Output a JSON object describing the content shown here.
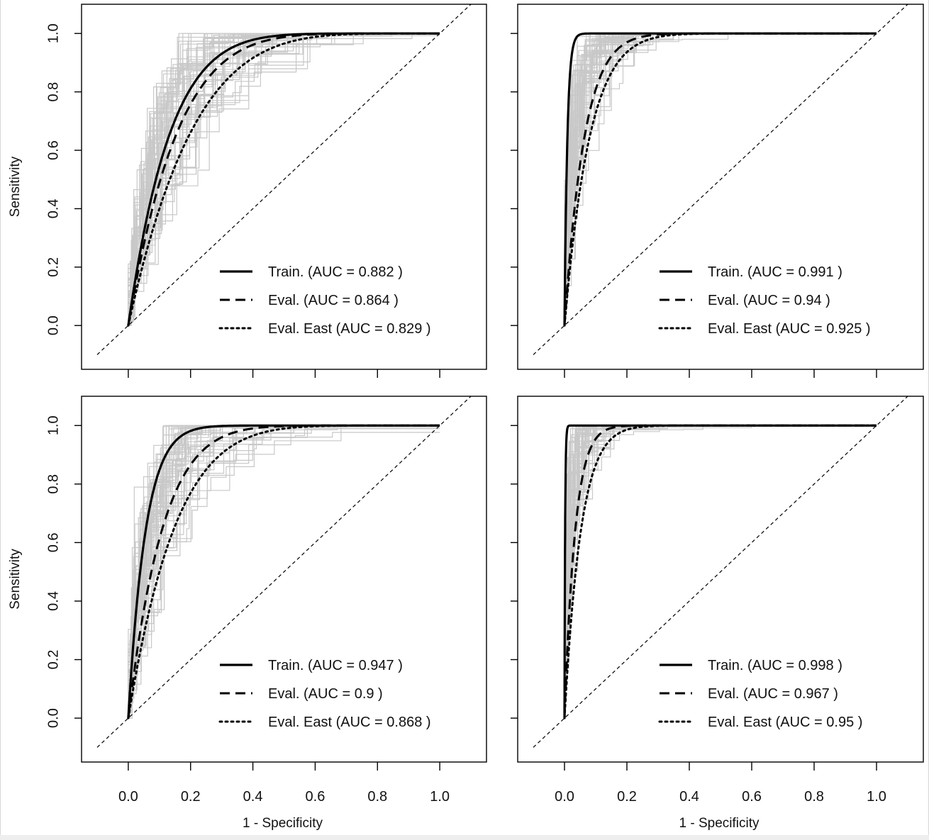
{
  "chart_data": [
    {
      "type": "line",
      "panel": "top-left",
      "xlabel": "",
      "ylabel": "Sensitivity",
      "xlim": [
        -0.15,
        1.15
      ],
      "ylim": [
        -0.15,
        1.1
      ],
      "x_ticks": [
        0.0,
        0.2,
        0.4,
        0.6,
        0.8,
        1.0
      ],
      "y_ticks": [
        0.0,
        0.2,
        0.4,
        0.6,
        0.8,
        1.0
      ],
      "show_x_tick_labels": false,
      "show_y_tick_labels": true,
      "legend_position": "bottom-right",
      "series": [
        {
          "name": "Train. (AUC = 0.882 )",
          "style": "solid",
          "auc": 0.882
        },
        {
          "name": "Eval. (AUC = 0.864 )",
          "style": "dashed",
          "auc": 0.864
        },
        {
          "name": "Eval. East (AUC = 0.829 )",
          "style": "dotted",
          "auc": 0.829
        }
      ],
      "reference_line": "diagonal"
    },
    {
      "type": "line",
      "panel": "top-right",
      "xlabel": "",
      "ylabel": "",
      "xlim": [
        -0.15,
        1.15
      ],
      "ylim": [
        -0.15,
        1.1
      ],
      "x_ticks": [
        0.0,
        0.2,
        0.4,
        0.6,
        0.8,
        1.0
      ],
      "y_ticks": [
        0.0,
        0.2,
        0.4,
        0.6,
        0.8,
        1.0
      ],
      "show_x_tick_labels": false,
      "show_y_tick_labels": false,
      "legend_position": "bottom-right",
      "series": [
        {
          "name": "Train. (AUC = 0.991 )",
          "style": "solid",
          "auc": 0.991
        },
        {
          "name": "Eval. (AUC = 0.94 )",
          "style": "dashed",
          "auc": 0.94
        },
        {
          "name": "Eval. East (AUC = 0.925 )",
          "style": "dotted",
          "auc": 0.925
        }
      ],
      "reference_line": "diagonal"
    },
    {
      "type": "line",
      "panel": "bottom-left",
      "xlabel": "1 - Specificity",
      "ylabel": "Sensitivity",
      "xlim": [
        -0.15,
        1.15
      ],
      "ylim": [
        -0.15,
        1.1
      ],
      "x_ticks": [
        0.0,
        0.2,
        0.4,
        0.6,
        0.8,
        1.0
      ],
      "y_ticks": [
        0.0,
        0.2,
        0.4,
        0.6,
        0.8,
        1.0
      ],
      "show_x_tick_labels": true,
      "show_y_tick_labels": true,
      "legend_position": "bottom-right",
      "series": [
        {
          "name": "Train. (AUC = 0.947 )",
          "style": "solid",
          "auc": 0.947
        },
        {
          "name": "Eval. (AUC = 0.9 )",
          "style": "dashed",
          "auc": 0.9
        },
        {
          "name": "Eval. East (AUC = 0.868 )",
          "style": "dotted",
          "auc": 0.868
        }
      ],
      "reference_line": "diagonal"
    },
    {
      "type": "line",
      "panel": "bottom-right",
      "xlabel": "1 - Specificity",
      "ylabel": "",
      "xlim": [
        -0.15,
        1.15
      ],
      "ylim": [
        -0.15,
        1.1
      ],
      "x_ticks": [
        0.0,
        0.2,
        0.4,
        0.6,
        0.8,
        1.0
      ],
      "y_ticks": [
        0.0,
        0.2,
        0.4,
        0.6,
        0.8,
        1.0
      ],
      "show_x_tick_labels": true,
      "show_y_tick_labels": false,
      "legend_position": "bottom-right",
      "series": [
        {
          "name": "Train. (AUC = 0.998 )",
          "style": "solid",
          "auc": 0.998
        },
        {
          "name": "Eval. (AUC = 0.967 )",
          "style": "dashed",
          "auc": 0.967
        },
        {
          "name": "Eval. East (AUC = 0.95 )",
          "style": "dotted",
          "auc": 0.95
        }
      ],
      "reference_line": "diagonal"
    }
  ],
  "colors": {
    "main_lines": "#000000",
    "replicate_lines": "#c8c8c8",
    "frame": "#000000",
    "background": "#ffffff"
  }
}
